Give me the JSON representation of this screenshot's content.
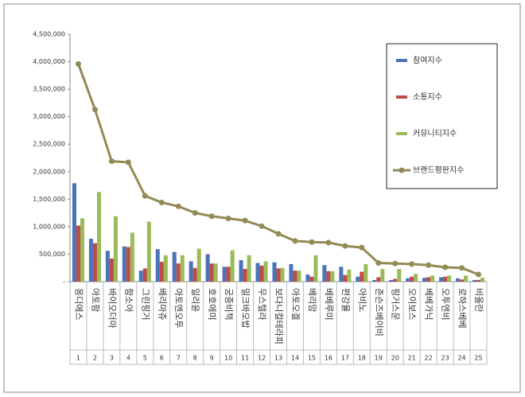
{
  "chart_data": {
    "type": "bar-line",
    "categories": [
      "몽디에스",
      "아토팜",
      "바이오더마",
      "함소아",
      "그린핑거",
      "베리마쥬",
      "아토엔오투",
      "일리윤",
      "호호에미",
      "궁중비책",
      "밀크바오밥",
      "무스텔라",
      "보다니컬테라피",
      "아토오겔",
      "베리맘",
      "베베루미",
      "편강율",
      "아비노",
      "존슨즈베이비",
      "핑거스문",
      "오이보스",
      "베베가닉",
      "오투엔비",
      "로하스베베",
      "비올란"
    ],
    "ranks": [
      1,
      2,
      3,
      4,
      5,
      6,
      7,
      8,
      9,
      10,
      11,
      12,
      13,
      14,
      15,
      16,
      17,
      18,
      19,
      20,
      21,
      22,
      23,
      24,
      25
    ],
    "series": [
      {
        "name": "참여지수",
        "kind": "bar",
        "color": "#4a74b8",
        "values": [
          1790000,
          780000,
          560000,
          640000,
          200000,
          590000,
          540000,
          370000,
          500000,
          270000,
          390000,
          340000,
          350000,
          320000,
          130000,
          300000,
          270000,
          90000,
          30000,
          30000,
          60000,
          70000,
          80000,
          60000,
          30000
        ]
      },
      {
        "name": "소통지수",
        "kind": "bar",
        "color": "#be4b48",
        "values": [
          1020000,
          700000,
          420000,
          630000,
          240000,
          360000,
          330000,
          250000,
          330000,
          270000,
          230000,
          290000,
          240000,
          200000,
          90000,
          190000,
          120000,
          180000,
          80000,
          50000,
          90000,
          80000,
          90000,
          40000,
          30000
        ]
      },
      {
        "name": "커뮤니티지수",
        "kind": "bar",
        "color": "#9bbb59",
        "values": [
          1150000,
          1630000,
          1190000,
          890000,
          1090000,
          480000,
          480000,
          600000,
          330000,
          570000,
          480000,
          370000,
          250000,
          200000,
          480000,
          190000,
          220000,
          320000,
          230000,
          230000,
          140000,
          110000,
          110000,
          110000,
          70000
        ]
      },
      {
        "name": "브랜드평판지수",
        "kind": "line",
        "color": "#948a54",
        "values": [
          3960000,
          3130000,
          2190000,
          2170000,
          1560000,
          1440000,
          1370000,
          1250000,
          1190000,
          1150000,
          1110000,
          1010000,
          870000,
          740000,
          720000,
          710000,
          650000,
          620000,
          340000,
          330000,
          320000,
          300000,
          260000,
          250000,
          130000
        ]
      }
    ],
    "ylim": [
      0,
      4500000
    ],
    "yticks": [
      {
        "value": 0,
        "label": "-"
      },
      {
        "value": 500000,
        "label": "500,000"
      },
      {
        "value": 1000000,
        "label": "1,000,000"
      },
      {
        "value": 1500000,
        "label": "1,500,000"
      },
      {
        "value": 2000000,
        "label": "2,000,000"
      },
      {
        "value": 2500000,
        "label": "2,500,000"
      },
      {
        "value": 3000000,
        "label": "3,000,000"
      },
      {
        "value": 3500000,
        "label": "3,500,000"
      },
      {
        "value": 4000000,
        "label": "4,000,000"
      },
      {
        "value": 4500000,
        "label": "4,500,000"
      }
    ],
    "grid": false
  }
}
